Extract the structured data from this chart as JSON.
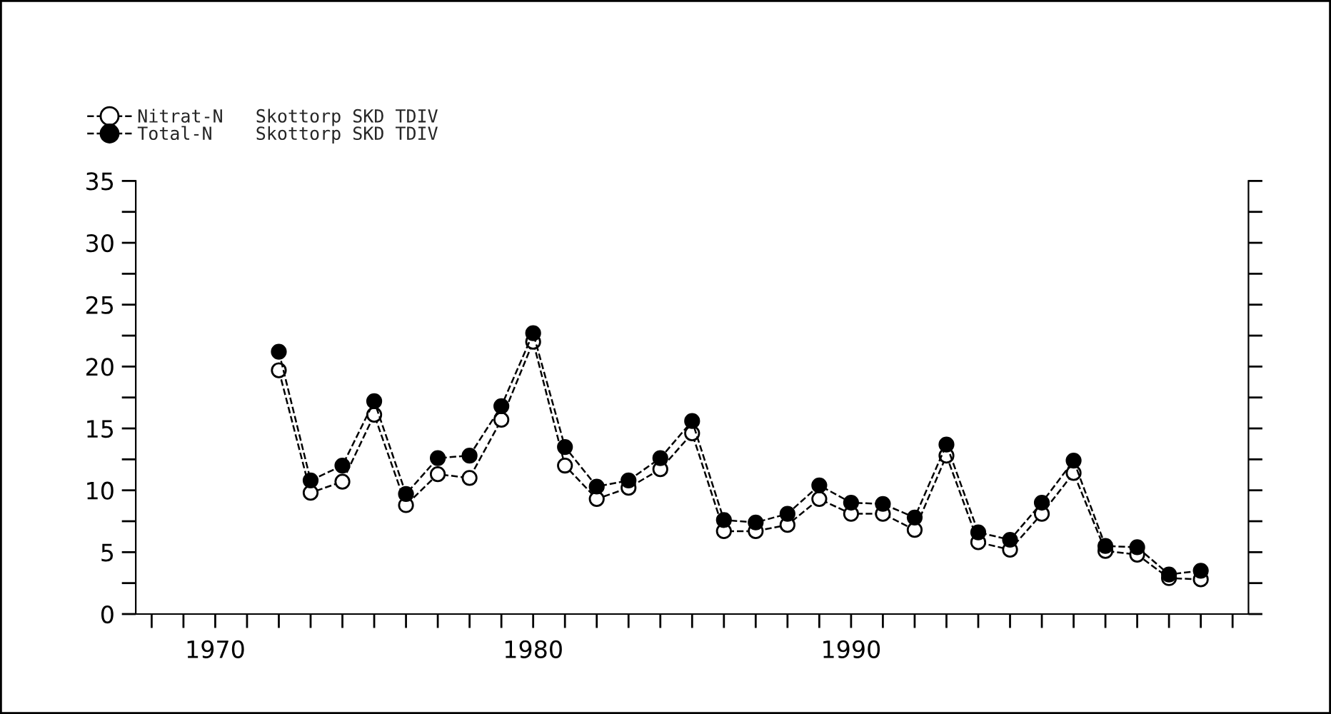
{
  "chart_data": {
    "type": "line",
    "x": [
      1972,
      1973,
      1974,
      1975,
      1976,
      1977,
      1978,
      1979,
      1980,
      1981,
      1982,
      1983,
      1984,
      1985,
      1986,
      1987,
      1988,
      1989,
      1990,
      1991,
      1992,
      1993,
      1994,
      1995,
      1996,
      1997,
      1998,
      1999,
      2000,
      2001
    ],
    "series": [
      {
        "name": "Nitrat-N   Skottorp SKD TDIV",
        "color": "#ffffff",
        "values": [
          19.7,
          9.8,
          10.7,
          16.1,
          8.8,
          11.3,
          11.0,
          15.7,
          22.0,
          12.0,
          9.3,
          10.2,
          11.7,
          14.6,
          6.7,
          6.7,
          7.2,
          9.3,
          8.1,
          8.1,
          6.8,
          12.8,
          5.8,
          5.2,
          8.1,
          11.4,
          5.1,
          4.8,
          2.9,
          2.8
        ]
      },
      {
        "name": "Total-N    Skottorp SKD TDIV",
        "color": "#000000",
        "values": [
          21.2,
          10.8,
          12.0,
          17.2,
          9.7,
          12.6,
          12.8,
          16.8,
          22.7,
          13.5,
          10.3,
          10.8,
          12.6,
          15.6,
          7.6,
          7.4,
          8.1,
          10.4,
          9.0,
          8.9,
          7.8,
          13.7,
          6.6,
          6.0,
          9.0,
          12.4,
          5.5,
          5.4,
          3.2,
          3.5
        ]
      }
    ],
    "xlim": [
      1967.5,
      2002.5
    ],
    "xticks": [
      {
        "value": 1968,
        "label": null
      },
      {
        "value": 1969,
        "label": null
      },
      1970,
      {
        "value": 1971,
        "label": null
      },
      {
        "value": 1972,
        "label": null
      },
      {
        "value": 1973,
        "label": null
      },
      {
        "value": 1974,
        "label": null
      },
      {
        "value": 1975,
        "label": null
      },
      {
        "value": 1976,
        "label": null
      },
      {
        "value": 1977,
        "label": null
      },
      {
        "value": 1978,
        "label": null
      },
      {
        "value": 1979,
        "label": null
      },
      1980,
      {
        "value": 1981,
        "label": null
      },
      {
        "value": 1982,
        "label": null
      },
      {
        "value": 1983,
        "label": null
      },
      {
        "value": 1984,
        "label": null
      },
      {
        "value": 1985,
        "label": null
      },
      {
        "value": 1986,
        "label": null
      },
      {
        "value": 1987,
        "label": null
      },
      {
        "value": 1988,
        "label": null
      },
      {
        "value": 1989,
        "label": null
      },
      1990,
      {
        "value": 1991,
        "label": null
      },
      {
        "value": 1992,
        "label": null
      },
      {
        "value": 1993,
        "label": null
      },
      {
        "value": 1994,
        "label": null
      },
      {
        "value": 1995,
        "label": null
      },
      {
        "value": 1996,
        "label": null
      },
      {
        "value": 1997,
        "label": null
      },
      {
        "value": 1998,
        "label": null
      },
      {
        "value": 1999,
        "label": null
      },
      {
        "value": 2000,
        "label": null
      },
      {
        "value": 2001,
        "label": null
      },
      {
        "value": 2002,
        "label": null
      }
    ],
    "ylim": [
      0,
      35
    ],
    "yticks": [
      0,
      {
        "value": 2.5,
        "label": null
      },
      5,
      {
        "value": 7.5,
        "label": null
      },
      10,
      {
        "value": 12.5,
        "label": null
      },
      15,
      {
        "value": 17.5,
        "label": null
      },
      20,
      {
        "value": 22.5,
        "label": null
      },
      25,
      {
        "value": 27.5,
        "label": null
      },
      30,
      {
        "value": 32.5,
        "label": null
      },
      35
    ],
    "marker": "circle",
    "line_style": "dashed",
    "grid": false,
    "legend": "top left"
  }
}
